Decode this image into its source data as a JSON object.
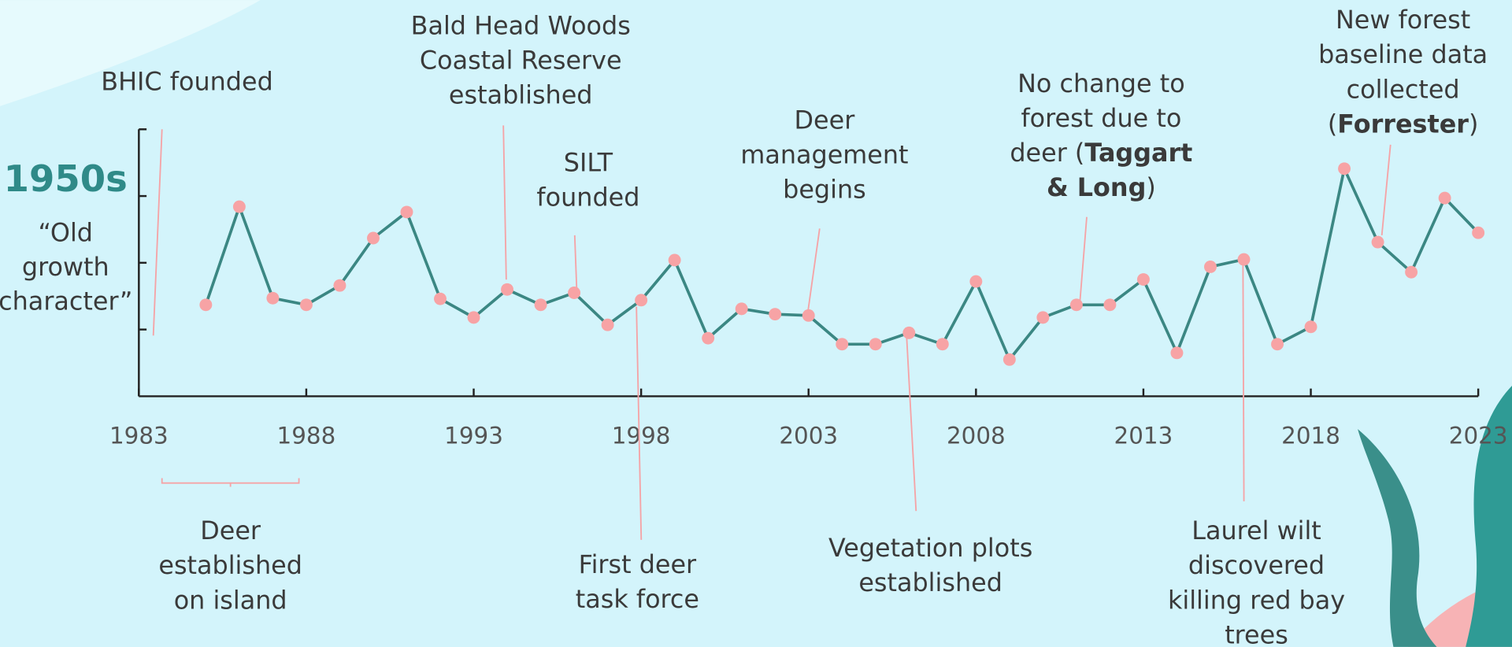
{
  "chart_data": {
    "type": "line",
    "x": [
      1985,
      1986,
      1987,
      1988,
      1989,
      1990,
      1991,
      1992,
      1993,
      1994,
      1995,
      1996,
      1997,
      1998,
      1999,
      2000,
      2001,
      2002,
      2003,
      2004,
      2005,
      2006,
      2007,
      2008,
      2009,
      2010,
      2011,
      2012,
      2013,
      2014,
      2015,
      2016,
      2017,
      2018,
      2019,
      2020,
      2021,
      2022,
      2023
    ],
    "values": [
      1.37,
      2.84,
      1.47,
      1.37,
      1.66,
      2.37,
      2.76,
      1.46,
      1.18,
      1.6,
      1.37,
      1.55,
      1.07,
      1.44,
      2.04,
      0.87,
      1.31,
      1.23,
      1.21,
      0.78,
      0.78,
      0.95,
      0.78,
      1.72,
      0.55,
      1.18,
      1.37,
      1.37,
      1.75,
      0.65,
      1.94,
      2.05,
      0.78,
      1.04,
      3.41,
      2.31,
      1.86,
      2.97,
      2.45
    ],
    "color": "#3b8783",
    "marker_color": "#f7a3a5",
    "xlim": [
      1983,
      2023
    ],
    "xticks": [
      1983,
      1988,
      1993,
      1998,
      2003,
      2008,
      2013,
      2018,
      2023
    ],
    "ylim": [
      0,
      4
    ],
    "yticks": [
      1,
      2,
      3,
      4
    ],
    "side_label": {
      "heading": "1950s",
      "lines": [
        "“Old",
        "growth",
        "character”"
      ]
    },
    "annotations": [
      {
        "lines": [
          [
            "BHIC founded"
          ]
        ]
      },
      {
        "lines": [
          [
            "Bald Head Woods"
          ],
          [
            "Coastal Reserve"
          ],
          [
            "established"
          ]
        ]
      },
      {
        "lines": [
          [
            "SILT"
          ],
          [
            "founded"
          ]
        ]
      },
      {
        "lines": [
          [
            "Deer"
          ],
          [
            "management"
          ],
          [
            "begins"
          ]
        ]
      },
      {
        "lines": [
          [
            "No change to"
          ],
          [
            "forest due to"
          ],
          [
            "deer (",
            {
              "text": "Taggart",
              "bold": true
            }
          ],
          [
            {
              "text": "& Long",
              "bold": true
            },
            ")"
          ]
        ]
      },
      {
        "lines": [
          [
            "New forest"
          ],
          [
            "baseline data"
          ],
          [
            "collected"
          ],
          [
            "(",
            {
              "text": "Forrester",
              "bold": true
            },
            ")"
          ]
        ]
      },
      {
        "lines": [
          [
            "Deer"
          ],
          [
            "established"
          ],
          [
            "on island"
          ]
        ]
      },
      {
        "lines": [
          [
            "First deer"
          ],
          [
            "task force"
          ]
        ]
      },
      {
        "lines": [
          [
            "Vegetation plots"
          ],
          [
            "established"
          ]
        ]
      },
      {
        "lines": [
          [
            "Laurel wilt"
          ],
          [
            "discovered"
          ],
          [
            "killing red bay"
          ],
          [
            "trees"
          ]
        ]
      }
    ]
  }
}
